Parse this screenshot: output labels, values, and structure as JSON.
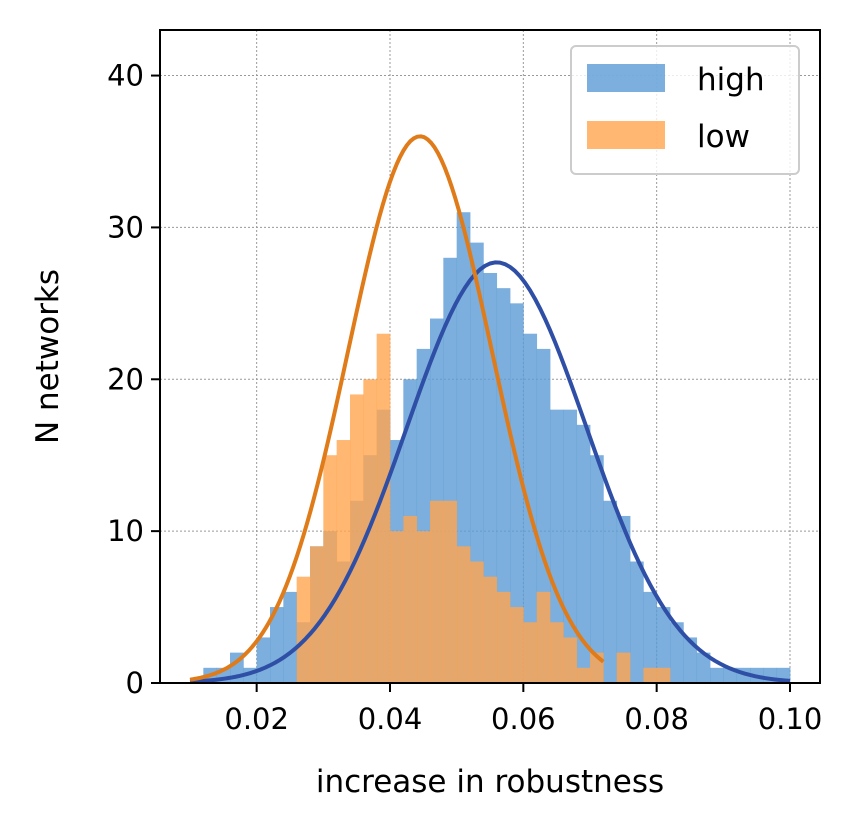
{
  "chart_data": {
    "type": "histogram",
    "title": "",
    "xlabel": "increase in robustness",
    "ylabel": "N networks",
    "xlim": [
      0.0055,
      0.1045
    ],
    "ylim": [
      0,
      43
    ],
    "xticks": [
      0.02,
      0.04,
      0.06,
      0.08,
      0.1
    ],
    "xtick_labels": [
      "0.02",
      "0.04",
      "0.06",
      "0.08",
      "0.10"
    ],
    "yticks": [
      0,
      10,
      20,
      30,
      40
    ],
    "ytick_labels": [
      "0",
      "10",
      "20",
      "30",
      "40"
    ],
    "grid": true,
    "legend": {
      "position": "top-right"
    },
    "bin_start": 0.01,
    "bin_width": 0.002,
    "series": [
      {
        "name": "high",
        "color": "#5b9bd5",
        "opacity": 0.8,
        "counts": [
          0,
          1,
          1,
          2,
          1,
          3,
          5,
          6,
          4,
          9,
          10,
          8,
          12,
          15,
          18,
          16,
          20,
          22,
          24,
          28,
          31,
          29,
          27,
          26,
          25,
          23,
          22,
          18,
          18,
          17,
          15,
          12,
          11,
          8,
          6,
          5,
          4,
          3,
          2,
          1,
          1,
          1,
          1,
          1,
          1
        ]
      },
      {
        "name": "low",
        "color": "#ffa54f",
        "opacity": 0.8,
        "counts": [
          0,
          0,
          0,
          0,
          0,
          0,
          0,
          0,
          7,
          9,
          15,
          16,
          19,
          20,
          23,
          10,
          11,
          10,
          12,
          12,
          9,
          8,
          7,
          6,
          5,
          4,
          6,
          4,
          3,
          1,
          2,
          0,
          2,
          0,
          1,
          1,
          0,
          0,
          0,
          0,
          0,
          0,
          0,
          0,
          0
        ]
      }
    ],
    "fits": [
      {
        "name": "high-fit",
        "color": "#2f4ea5",
        "type": "normal",
        "mean": 0.056,
        "std": 0.0135,
        "peak": 27.7,
        "x_start": 0.01,
        "x_end": 0.1
      },
      {
        "name": "low-fit",
        "color": "#e07b1a",
        "type": "normal",
        "mean": 0.0445,
        "std": 0.0108,
        "peak": 36.0,
        "x_start": 0.01,
        "x_end": 0.072
      }
    ]
  }
}
